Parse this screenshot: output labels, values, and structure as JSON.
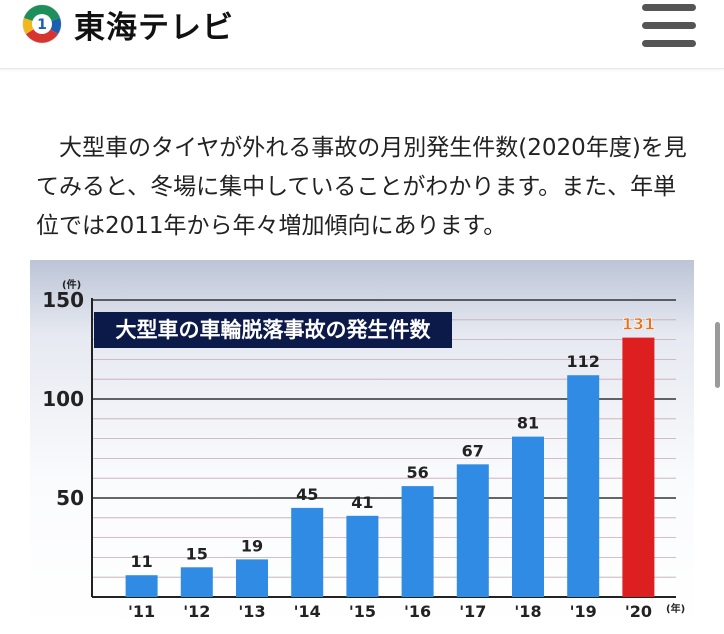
{
  "header": {
    "logo_text": "東海テレビ",
    "logo_mark_label": "1"
  },
  "article": {
    "intro": "大型車のタイヤが外れる事故の月別発生件数(2020年度)を見てみると、冬場に集中していることがわかります。また、年単位では2011年から年々増加傾向にあります。"
  },
  "chart_data": {
    "type": "bar",
    "title": "大型車の車輪脱落事故の発生件数",
    "y_unit": "(件)",
    "x_unit": "(年)",
    "categories": [
      "'11",
      "'12",
      "'13",
      "'14",
      "'15",
      "'16",
      "'17",
      "'18",
      "'19",
      "'20"
    ],
    "values": [
      11,
      15,
      19,
      45,
      41,
      56,
      67,
      81,
      112,
      131
    ],
    "ylim": [
      0,
      150
    ],
    "yticks": [
      50,
      100,
      150
    ],
    "grid": true,
    "colors": {
      "default": "#2f8be3",
      "highlight": "#dd1f1f",
      "highlight_label": "#e8731a"
    },
    "highlight_index": 9
  }
}
